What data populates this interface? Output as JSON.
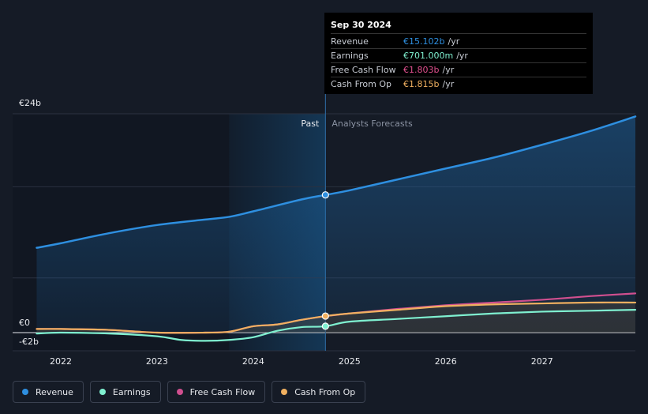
{
  "tooltip": {
    "date": "Sep 30 2024",
    "rows": [
      {
        "label": "Revenue",
        "value": "€15.102b",
        "unit": "/yr",
        "color": "#2e8fe0"
      },
      {
        "label": "Earnings",
        "value": "€701.000m",
        "unit": "/yr",
        "color": "#7ff0d0"
      },
      {
        "label": "Free Cash Flow",
        "value": "€1.803b",
        "unit": "/yr",
        "color": "#e0508e"
      },
      {
        "label": "Cash From Op",
        "value": "€1.815b",
        "unit": "/yr",
        "color": "#f0b060"
      }
    ]
  },
  "legend": [
    {
      "label": "Revenue",
      "color": "#2e8fe0"
    },
    {
      "label": "Earnings",
      "color": "#7ff0d0"
    },
    {
      "label": "Free Cash Flow",
      "color": "#d04f8f"
    },
    {
      "label": "Cash From Op",
      "color": "#f0b060"
    }
  ],
  "chart_data": {
    "type": "line",
    "past_label": "Past",
    "forecast_label": "Analysts Forecasts",
    "y_tick_labels": [
      "€24b",
      "€0",
      "-€2b"
    ],
    "ylim": [
      -2,
      24
    ],
    "x_tick_labels": [
      "2022",
      "2023",
      "2024",
      "2025",
      "2026",
      "2027"
    ],
    "x_tick_years": [
      2022,
      2023,
      2024,
      2025,
      2026,
      2027
    ],
    "xlim": [
      2021.5,
      2027.97
    ],
    "past_shade_start": 2023.75,
    "divider_x": 2024.75,
    "series": [
      {
        "name": "Revenue",
        "color": "#2e8fe0",
        "x": [
          2021.75,
          2022.0,
          2022.5,
          2023.0,
          2023.5,
          2023.75,
          2024.0,
          2024.5,
          2024.75,
          2025.0,
          2025.5,
          2026.0,
          2026.5,
          2027.0,
          2027.5,
          2027.97
        ],
        "y": [
          9.3,
          9.8,
          10.9,
          11.8,
          12.4,
          12.7,
          13.3,
          14.6,
          15.102,
          15.6,
          16.8,
          18.0,
          19.2,
          20.6,
          22.1,
          23.7
        ]
      },
      {
        "name": "Earnings",
        "color": "#7ff0d0",
        "x": [
          2021.75,
          2022.0,
          2022.5,
          2023.0,
          2023.25,
          2023.5,
          2023.75,
          2024.0,
          2024.25,
          2024.5,
          2024.75,
          2025.0,
          2025.5,
          2026.0,
          2026.5,
          2027.0,
          2027.5,
          2027.97
        ],
        "y": [
          -0.1,
          0.0,
          -0.1,
          -0.4,
          -0.8,
          -0.9,
          -0.8,
          -0.5,
          0.2,
          0.6,
          0.701,
          1.2,
          1.5,
          1.8,
          2.1,
          2.3,
          2.4,
          2.5
        ]
      },
      {
        "name": "Free Cash Flow",
        "color": "#d04f8f",
        "x": [
          2021.75,
          2022.0,
          2022.5,
          2023.0,
          2023.5,
          2023.75,
          2024.0,
          2024.25,
          2024.5,
          2024.75,
          2025.0,
          2025.5,
          2026.0,
          2026.5,
          2027.0,
          2027.5,
          2027.97
        ],
        "y": [
          0.4,
          0.4,
          0.3,
          0.0,
          0.0,
          0.1,
          0.7,
          0.9,
          1.4,
          1.803,
          2.1,
          2.6,
          3.0,
          3.3,
          3.6,
          4.0,
          4.3
        ]
      },
      {
        "name": "Cash From Op",
        "color": "#f0b060",
        "x": [
          2021.75,
          2022.0,
          2022.5,
          2023.0,
          2023.5,
          2023.75,
          2024.0,
          2024.25,
          2024.5,
          2024.75,
          2025.0,
          2025.5,
          2026.0,
          2026.5,
          2027.0,
          2027.5,
          2027.97
        ],
        "y": [
          0.4,
          0.4,
          0.3,
          0.0,
          0.0,
          0.1,
          0.7,
          0.9,
          1.4,
          1.815,
          2.1,
          2.5,
          2.9,
          3.1,
          3.2,
          3.3,
          3.3
        ]
      }
    ]
  }
}
